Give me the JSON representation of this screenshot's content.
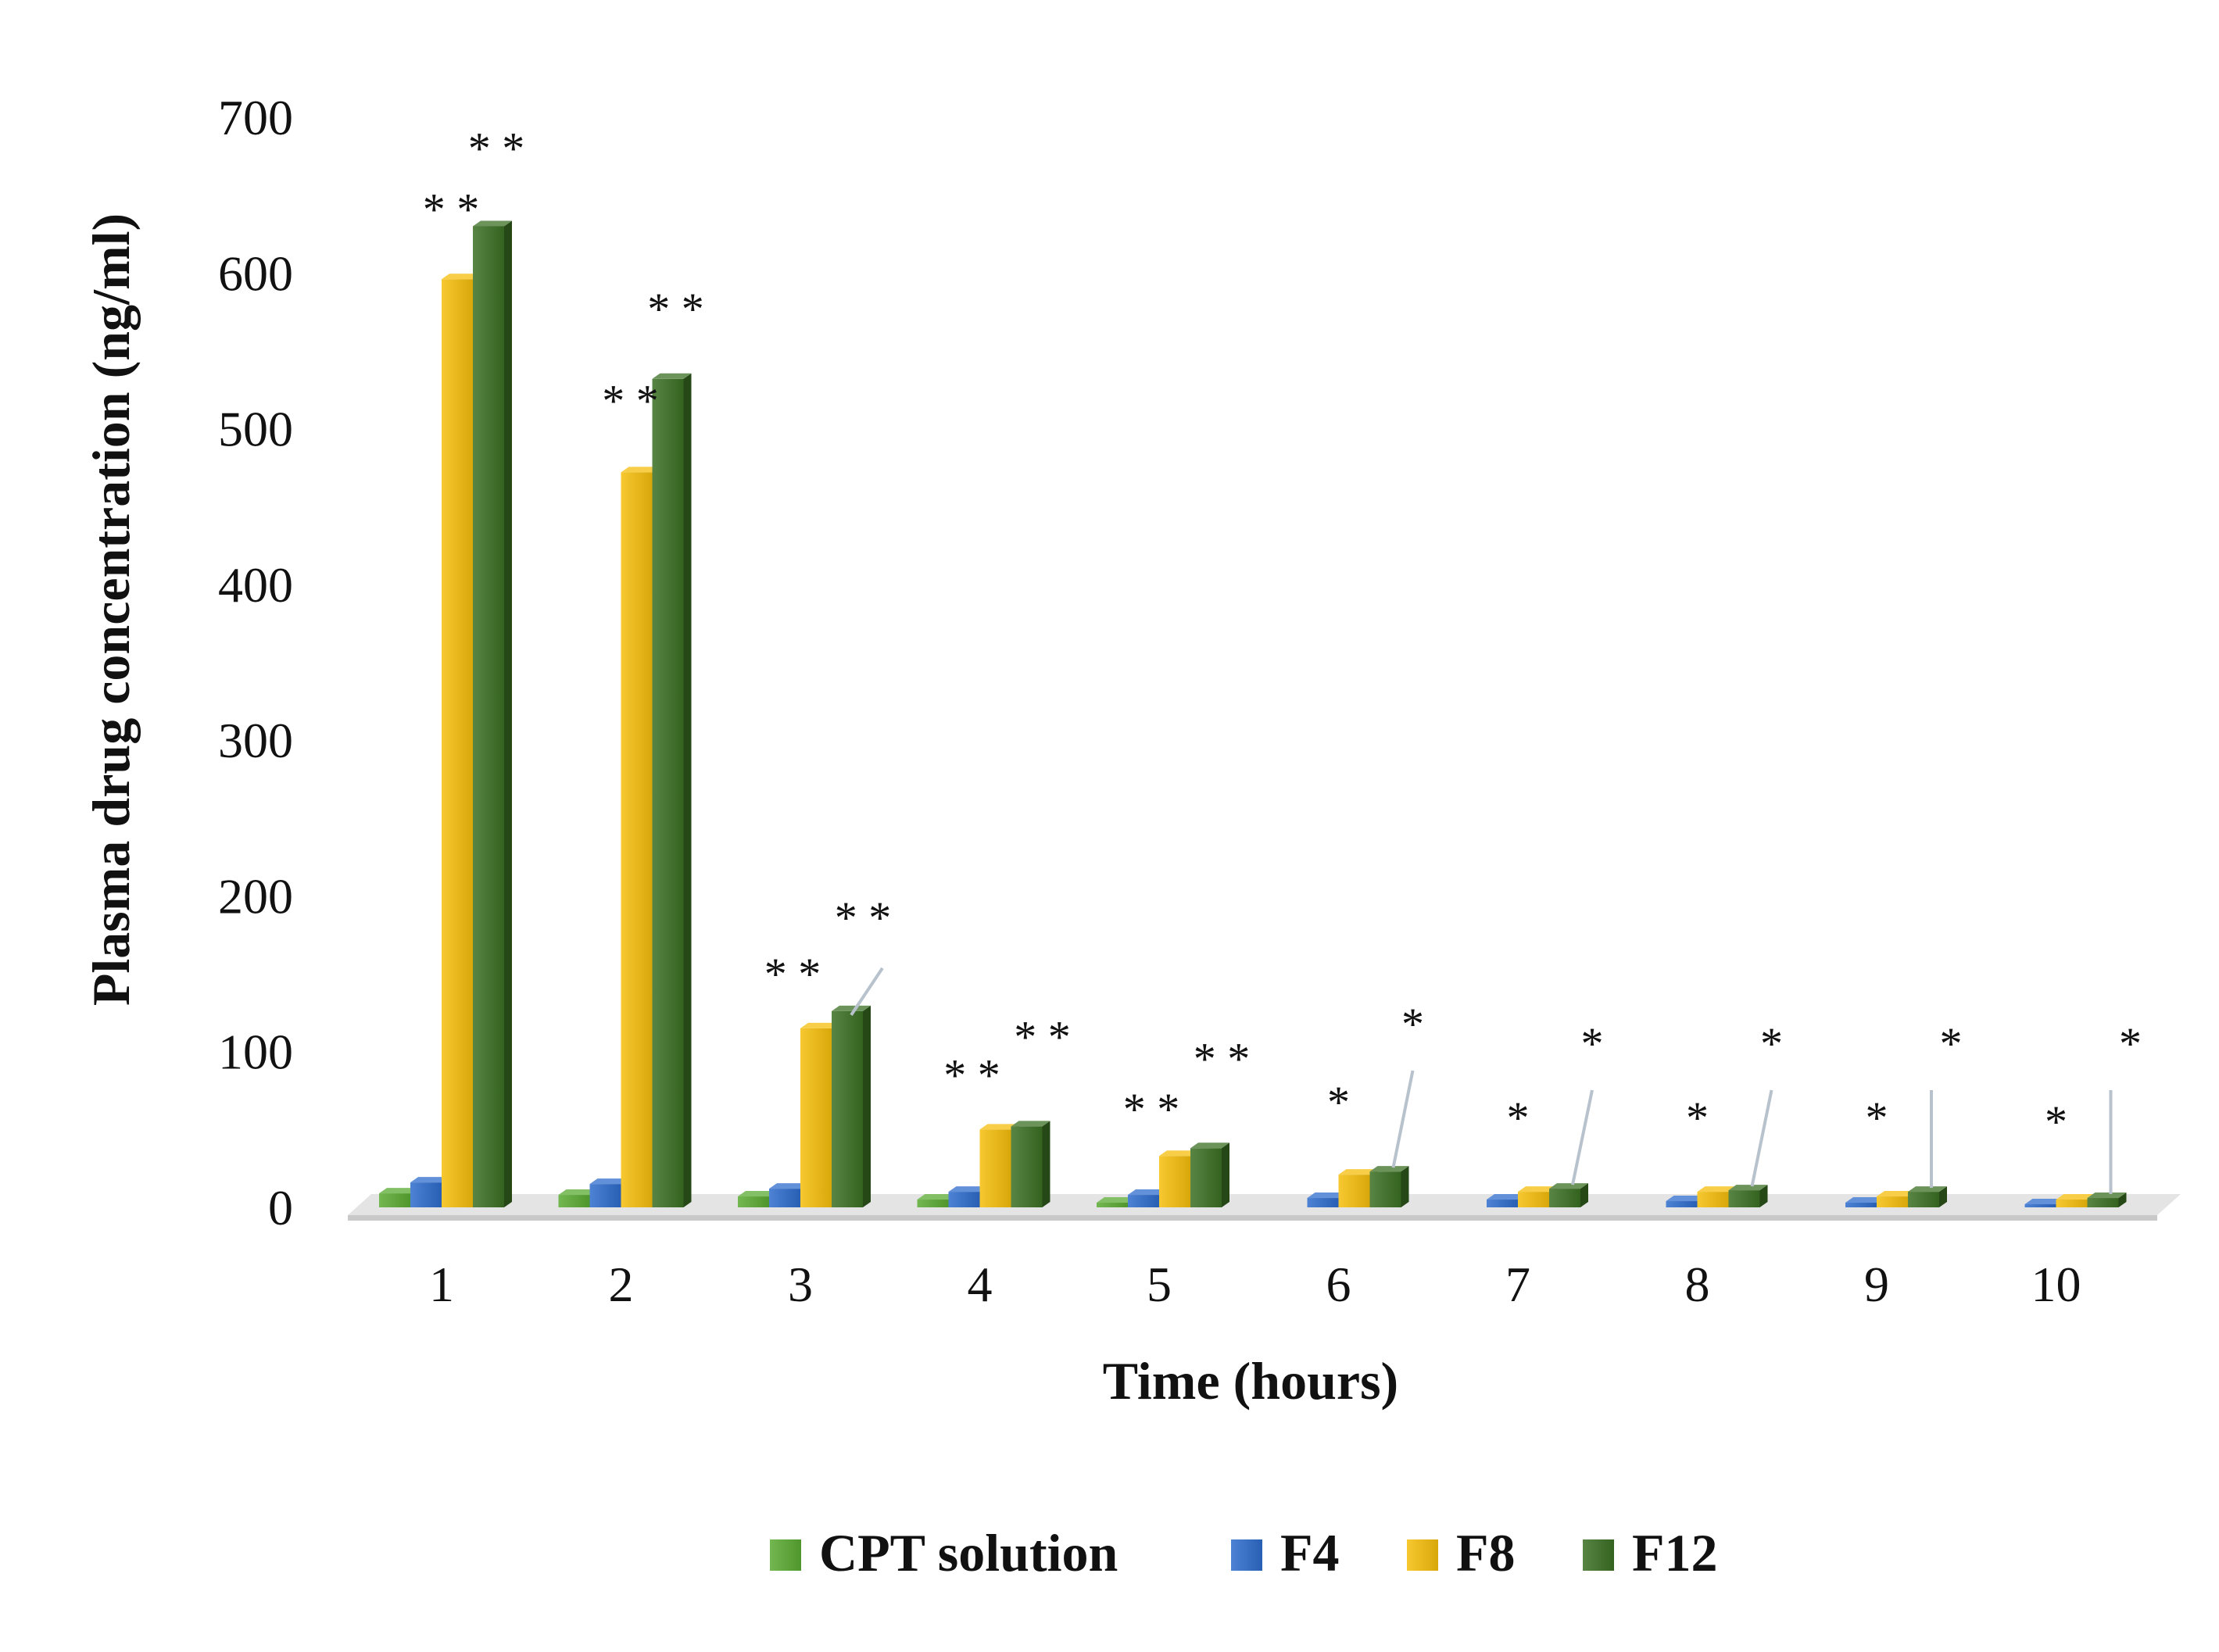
{
  "chart_data": {
    "type": "bar",
    "title": "",
    "xlabel": "Time (hours)",
    "ylabel": "Plasma drug concentration (ng/ml)",
    "ylim": [
      0,
      700
    ],
    "yticks": [
      "0",
      "100",
      "200",
      "300",
      "400",
      "500",
      "600",
      "700"
    ],
    "categories": [
      "1",
      "2",
      "3",
      "4",
      "5",
      "6",
      "7",
      "8",
      "9",
      "10"
    ],
    "series": [
      {
        "name": "CPT solution",
        "color": "#5aaa32",
        "values": [
          9,
          8,
          7,
          5,
          3,
          0,
          0,
          0,
          0,
          0
        ]
      },
      {
        "name": "F4",
        "color": "#2d6ccc",
        "values": [
          16,
          15,
          12,
          10,
          8,
          6,
          5,
          4,
          3,
          2
        ]
      },
      {
        "name": "F8",
        "color": "#f5be0b",
        "values": [
          596,
          472,
          115,
          50,
          33,
          21,
          10,
          10,
          7,
          5
        ]
      },
      {
        "name": "F12",
        "color": "#3b6f23",
        "values": [
          630,
          532,
          126,
          52,
          38,
          23,
          12,
          11,
          10,
          6
        ]
      }
    ],
    "significance": [
      {
        "category": "1",
        "series": "F8",
        "label": "**"
      },
      {
        "category": "1",
        "series": "F12",
        "label": "**"
      },
      {
        "category": "2",
        "series": "F8",
        "label": "**"
      },
      {
        "category": "2",
        "series": "F12",
        "label": "**"
      },
      {
        "category": "3",
        "series": "F8",
        "label": "**"
      },
      {
        "category": "3",
        "series": "F12",
        "label": "**"
      },
      {
        "category": "4",
        "series": "F8",
        "label": "**"
      },
      {
        "category": "4",
        "series": "F12",
        "label": "**"
      },
      {
        "category": "5",
        "series": "F8",
        "label": "**"
      },
      {
        "category": "5",
        "series": "F12",
        "label": "**"
      },
      {
        "category": "6",
        "series": "F8",
        "label": "*"
      },
      {
        "category": "6",
        "series": "F12",
        "label": "*"
      },
      {
        "category": "7",
        "series": "F8",
        "label": "*"
      },
      {
        "category": "7",
        "series": "F12",
        "label": "*"
      },
      {
        "category": "8",
        "series": "F8",
        "label": "*"
      },
      {
        "category": "8",
        "series": "F12",
        "label": "*"
      },
      {
        "category": "9",
        "series": "F8",
        "label": "*"
      },
      {
        "category": "9",
        "series": "F12",
        "label": "*"
      },
      {
        "category": "10",
        "series": "F8",
        "label": "*"
      },
      {
        "category": "10",
        "series": "F12",
        "label": "*"
      }
    ],
    "legend_position": "bottom-center"
  }
}
